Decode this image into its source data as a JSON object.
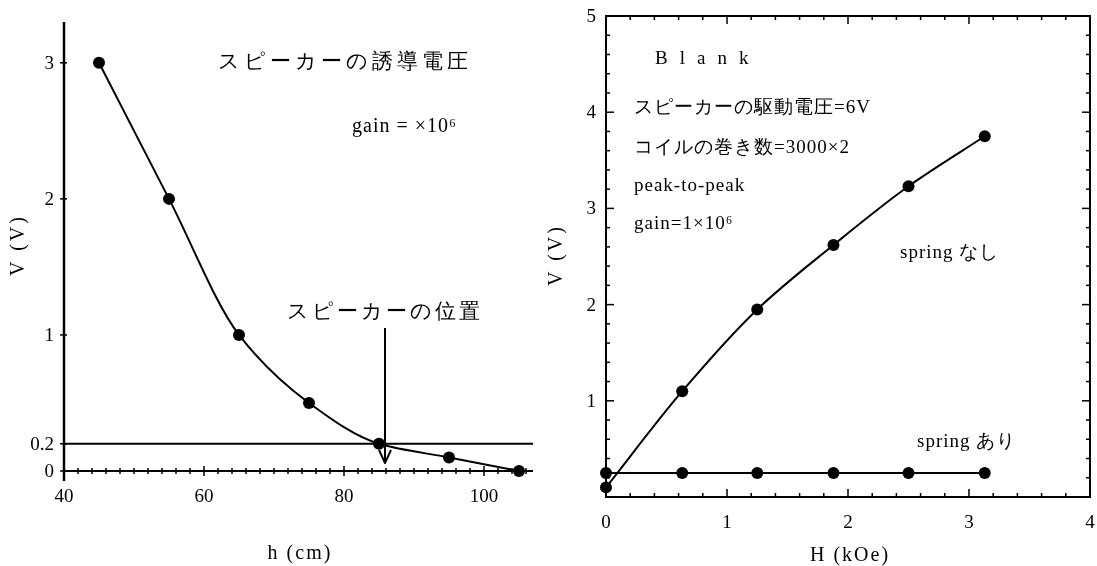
{
  "chart_data": [
    {
      "type": "line",
      "xlabel": "h (cm)",
      "ylabel": "V (V)",
      "xlim": [
        40,
        107
      ],
      "ylim": [
        0,
        3.3
      ],
      "xticks": [
        40,
        {
          "value": 42,
          "label": null
        },
        {
          "value": 44,
          "label": null
        },
        {
          "value": 46,
          "label": null
        },
        {
          "value": 48,
          "label": null
        },
        {
          "value": 50,
          "label": null
        },
        {
          "value": 52,
          "label": null
        },
        {
          "value": 54,
          "label": null
        },
        {
          "value": 56,
          "label": null
        },
        {
          "value": 58,
          "label": null
        },
        60,
        {
          "value": 62,
          "label": null
        },
        {
          "value": 64,
          "label": null
        },
        {
          "value": 66,
          "label": null
        },
        {
          "value": 68,
          "label": null
        },
        {
          "value": 70,
          "label": null
        },
        {
          "value": 72,
          "label": null
        },
        {
          "value": 74,
          "label": null
        },
        {
          "value": 76,
          "label": null
        },
        {
          "value": 78,
          "label": null
        },
        80,
        {
          "value": 82,
          "label": null
        },
        {
          "value": 84,
          "label": null
        },
        {
          "value": 86,
          "label": null
        },
        {
          "value": 88,
          "label": null
        },
        {
          "value": 90,
          "label": null
        },
        {
          "value": 92,
          "label": null
        },
        {
          "value": 94,
          "label": null
        },
        {
          "value": 96,
          "label": null
        },
        {
          "value": 98,
          "label": null
        },
        100,
        {
          "value": 102,
          "label": null
        },
        {
          "value": 104,
          "label": null
        },
        {
          "value": 106,
          "label": null
        }
      ],
      "yticks": [
        0,
        0.2,
        1,
        2,
        3
      ],
      "ref_lines": [
        {
          "axis": "y",
          "value": 0.2
        }
      ],
      "annotations": [
        "スピーカーの誘導電圧",
        "gain = ×10⁶",
        "スピーカーの位置"
      ],
      "x": [
        45,
        55,
        65,
        75,
        85,
        95,
        105
      ],
      "series": [
        {
          "color": "#000000",
          "values": [
            3,
            2,
            1,
            0.5,
            0.2,
            0.1,
            0
          ]
        }
      ],
      "marker": "circle",
      "line_style": "solid"
    },
    {
      "type": "line",
      "xlabel": "H (kOe)",
      "ylabel": "V (V)",
      "xlim": [
        0,
        4
      ],
      "ylim": [
        0,
        5
      ],
      "xticks": [
        0,
        {
          "value": 0.2,
          "label": null
        },
        {
          "value": 0.4,
          "label": null
        },
        {
          "value": 0.6,
          "label": null
        },
        {
          "value": 0.8,
          "label": null
        },
        1,
        {
          "value": 1.2,
          "label": null
        },
        {
          "value": 1.4,
          "label": null
        },
        {
          "value": 1.6,
          "label": null
        },
        {
          "value": 1.8,
          "label": null
        },
        2,
        {
          "value": 2.2,
          "label": null
        },
        {
          "value": 2.4,
          "label": null
        },
        {
          "value": 2.6,
          "label": null
        },
        {
          "value": 2.8,
          "label": null
        },
        3,
        {
          "value": 3.2,
          "label": null
        },
        {
          "value": 3.4,
          "label": null
        },
        {
          "value": 3.6,
          "label": null
        },
        {
          "value": 3.8,
          "label": null
        },
        4
      ],
      "yticks": [
        {
          "value": 0,
          "label": null
        },
        {
          "value": 0.2,
          "label": null
        },
        {
          "value": 0.4,
          "label": null
        },
        {
          "value": 0.6,
          "label": null
        },
        {
          "value": 0.8,
          "label": null
        },
        1,
        {
          "value": 1.2,
          "label": null
        },
        {
          "value": 1.4,
          "label": null
        },
        {
          "value": 1.6,
          "label": null
        },
        {
          "value": 1.8,
          "label": null
        },
        2,
        {
          "value": 2.2,
          "label": null
        },
        {
          "value": 2.4,
          "label": null
        },
        {
          "value": 2.6,
          "label": null
        },
        {
          "value": 2.8,
          "label": null
        },
        3,
        {
          "value": 3.2,
          "label": null
        },
        {
          "value": 3.4,
          "label": null
        },
        {
          "value": 3.6,
          "label": null
        },
        {
          "value": 3.8,
          "label": null
        },
        4,
        {
          "value": 4.2,
          "label": null
        },
        {
          "value": 4.4,
          "label": null
        },
        {
          "value": 4.6,
          "label": null
        },
        {
          "value": 4.8,
          "label": null
        },
        5
      ],
      "annotations": [
        "Blank",
        "スピーカーの駆動電圧=6V",
        "コイルの巻き数=3000×2",
        "peak-to-peak",
        "gain=1×10⁶"
      ],
      "x": [
        0,
        0.63,
        1.25,
        1.88,
        2.5,
        3.13
      ],
      "series": [
        {
          "name": "spring なし",
          "color": "#000000",
          "values": [
            0.1,
            1.1,
            1.95,
            2.62,
            3.23,
            3.75
          ]
        },
        {
          "name": "spring あり",
          "color": "#000000",
          "values": [
            0.25,
            0.25,
            0.25,
            0.25,
            0.25,
            0.25
          ]
        }
      ],
      "marker": "circle",
      "line_style": "solid"
    }
  ]
}
